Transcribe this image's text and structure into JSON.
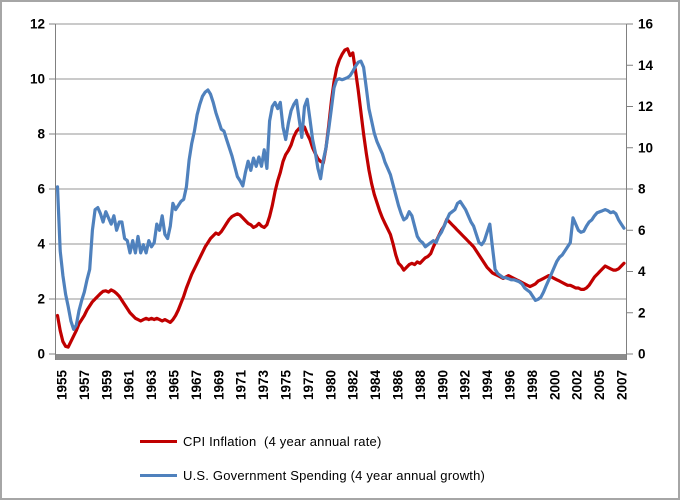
{
  "chart_data": {
    "type": "line",
    "title": "",
    "legend_position": "bottom",
    "grid": "horizontal",
    "x_start_year": 1955,
    "x_step_years": 0.25,
    "x_axis": {
      "labels": [
        "1955",
        "1957",
        "1959",
        "1961",
        "1963",
        "1965",
        "1967",
        "1969",
        "1971",
        "1973",
        "1975",
        "1977",
        "1980",
        "1982",
        "1984",
        "1986",
        "1988",
        "1990",
        "1992",
        "1994",
        "1996",
        "1998",
        "2000",
        "2002",
        "2005",
        "2007"
      ],
      "label_rotation_deg": 90
    },
    "y_axis_left": {
      "min": 0,
      "max": 12,
      "step": 2,
      "ticks": [
        0,
        2,
        4,
        6,
        8,
        10,
        12
      ]
    },
    "y_axis_right": {
      "min": 0,
      "max": 16,
      "step": 2,
      "ticks": [
        0,
        2,
        4,
        6,
        8,
        10,
        12,
        14,
        16
      ]
    },
    "colors": {
      "grid": "#969696",
      "axis": "#808080",
      "baseline_bar": "#8c8c8c"
    },
    "series": [
      {
        "name": "CPI Inflation  (4 year annual rate)",
        "color": "#C00000",
        "axis": "left",
        "values": [
          1.4,
          0.85,
          0.45,
          0.28,
          0.25,
          0.45,
          0.65,
          0.85,
          1.1,
          1.25,
          1.4,
          1.6,
          1.75,
          1.9,
          2.0,
          2.1,
          2.2,
          2.28,
          2.3,
          2.25,
          2.33,
          2.28,
          2.2,
          2.1,
          1.95,
          1.8,
          1.65,
          1.5,
          1.4,
          1.3,
          1.25,
          1.2,
          1.25,
          1.3,
          1.25,
          1.3,
          1.25,
          1.3,
          1.25,
          1.2,
          1.25,
          1.2,
          1.15,
          1.25,
          1.4,
          1.6,
          1.85,
          2.1,
          2.4,
          2.65,
          2.9,
          3.1,
          3.3,
          3.5,
          3.7,
          3.9,
          4.05,
          4.2,
          4.3,
          4.4,
          4.35,
          4.45,
          4.6,
          4.75,
          4.9,
          5.0,
          5.05,
          5.1,
          5.05,
          4.95,
          4.85,
          4.75,
          4.7,
          4.6,
          4.65,
          4.75,
          4.65,
          4.6,
          4.7,
          5.0,
          5.4,
          5.9,
          6.3,
          6.6,
          7.0,
          7.25,
          7.4,
          7.6,
          7.9,
          8.1,
          8.2,
          8.3,
          8.25,
          8.0,
          7.8,
          7.5,
          7.3,
          7.1,
          7.0,
          6.95,
          7.5,
          8.3,
          9.2,
          9.9,
          10.4,
          10.7,
          10.9,
          11.05,
          11.1,
          10.85,
          10.95,
          10.3,
          9.6,
          8.8,
          8.0,
          7.3,
          6.7,
          6.2,
          5.8,
          5.5,
          5.2,
          4.95,
          4.75,
          4.55,
          4.35,
          4.0,
          3.6,
          3.3,
          3.2,
          3.05,
          3.15,
          3.25,
          3.3,
          3.25,
          3.35,
          3.3,
          3.4,
          3.5,
          3.55,
          3.65,
          3.9,
          4.1,
          4.3,
          4.5,
          4.65,
          4.9,
          4.8,
          4.7,
          4.6,
          4.5,
          4.4,
          4.3,
          4.2,
          4.1,
          4.0,
          3.9,
          3.75,
          3.6,
          3.45,
          3.3,
          3.15,
          3.05,
          2.95,
          2.9,
          2.85,
          2.8,
          2.75,
          2.8,
          2.85,
          2.8,
          2.75,
          2.7,
          2.65,
          2.6,
          2.55,
          2.5,
          2.45,
          2.5,
          2.55,
          2.65,
          2.7,
          2.75,
          2.8,
          2.85,
          2.8,
          2.75,
          2.7,
          2.65,
          2.6,
          2.55,
          2.5,
          2.5,
          2.45,
          2.4,
          2.4,
          2.35,
          2.35,
          2.4,
          2.5,
          2.65,
          2.8,
          2.9,
          3.0,
          3.1,
          3.2,
          3.15,
          3.1,
          3.05,
          3.05,
          3.1,
          3.2,
          3.3
        ]
      },
      {
        "name": "U.S. Government Spending (4 year annual growth)",
        "color": "#4F81BD",
        "axis": "right",
        "values": [
          8.1,
          5.0,
          3.8,
          2.9,
          2.3,
          1.6,
          1.2,
          1.4,
          2.1,
          2.6,
          3.0,
          3.6,
          4.1,
          6.0,
          7.0,
          7.1,
          6.8,
          6.4,
          6.9,
          6.6,
          6.3,
          6.7,
          6.0,
          6.4,
          6.4,
          5.6,
          5.5,
          4.9,
          5.5,
          4.9,
          5.7,
          4.9,
          5.3,
          4.9,
          5.5,
          5.2,
          5.4,
          6.3,
          6.0,
          6.7,
          5.8,
          5.6,
          6.2,
          7.3,
          7.0,
          7.2,
          7.4,
          7.5,
          8.1,
          9.4,
          10.2,
          10.8,
          11.6,
          12.1,
          12.5,
          12.7,
          12.8,
          12.6,
          12.2,
          11.7,
          11.3,
          10.9,
          10.8,
          10.4,
          10.0,
          9.6,
          9.1,
          8.6,
          8.4,
          8.15,
          8.8,
          9.35,
          8.9,
          9.5,
          9.1,
          9.55,
          9.1,
          9.9,
          9.0,
          11.3,
          12.0,
          12.2,
          11.9,
          12.2,
          11.0,
          10.4,
          11.2,
          11.8,
          12.1,
          12.3,
          11.4,
          10.5,
          12.0,
          12.35,
          11.4,
          10.4,
          9.8,
          9.0,
          8.5,
          9.4,
          10.0,
          10.9,
          11.9,
          12.9,
          13.3,
          13.35,
          13.3,
          13.35,
          13.4,
          13.5,
          13.7,
          13.95,
          14.15,
          14.2,
          13.9,
          12.9,
          11.9,
          11.3,
          10.7,
          10.3,
          10.0,
          9.7,
          9.3,
          9.0,
          8.7,
          8.2,
          7.7,
          7.2,
          6.8,
          6.5,
          6.6,
          6.9,
          6.7,
          6.2,
          5.7,
          5.5,
          5.4,
          5.2,
          5.3,
          5.4,
          5.5,
          5.4,
          5.7,
          5.9,
          6.2,
          6.5,
          6.8,
          6.9,
          7.0,
          7.3,
          7.4,
          7.2,
          7.0,
          6.7,
          6.4,
          6.2,
          5.8,
          5.4,
          5.3,
          5.5,
          5.9,
          6.3,
          5.2,
          4.1,
          3.9,
          3.8,
          3.7,
          3.7,
          3.65,
          3.6,
          3.6,
          3.55,
          3.5,
          3.4,
          3.2,
          3.1,
          3.0,
          2.8,
          2.6,
          2.65,
          2.75,
          3.0,
          3.3,
          3.6,
          3.9,
          4.2,
          4.5,
          4.7,
          4.8,
          5.0,
          5.2,
          5.4,
          6.6,
          6.3,
          6.0,
          5.9,
          5.95,
          6.2,
          6.4,
          6.5,
          6.7,
          6.85,
          6.9,
          6.95,
          7.0,
          6.95,
          6.85,
          6.9,
          6.8,
          6.5,
          6.3,
          6.1
        ]
      }
    ]
  }
}
